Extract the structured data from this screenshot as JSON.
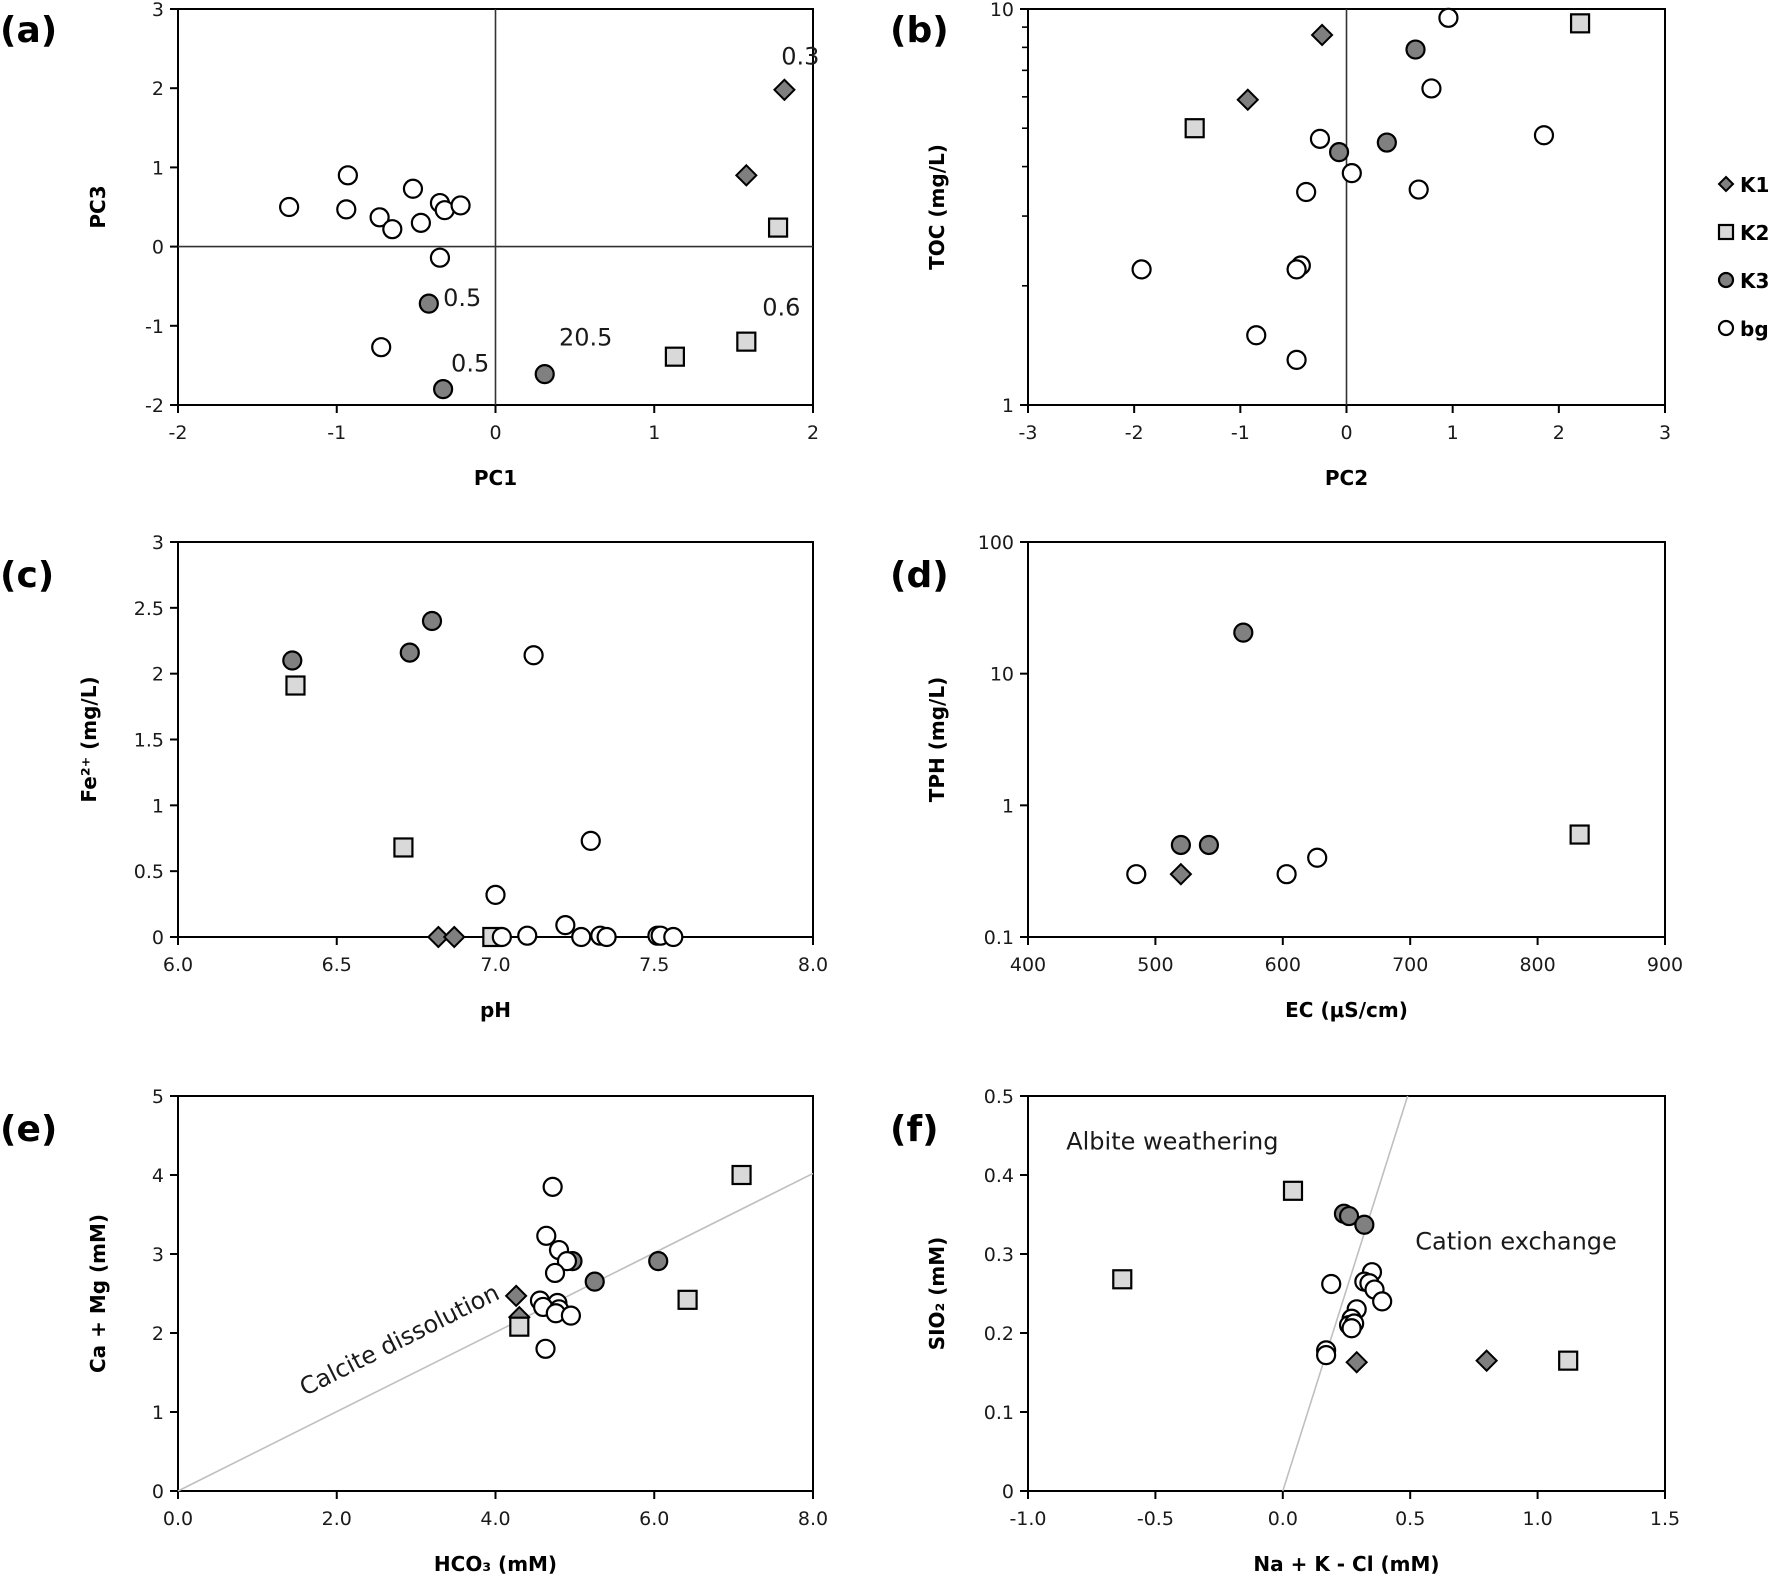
{
  "figure": {
    "legend": {
      "placement": "right-of-panel-b",
      "entries": [
        {
          "group": "K1",
          "label": "K1",
          "marker": "diamond",
          "fill": "#7f7f7f"
        },
        {
          "group": "K2",
          "label": "K2",
          "marker": "square",
          "fill": "#d9d9d9"
        },
        {
          "group": "K3",
          "label": "K3",
          "marker": "circle",
          "fill": "#808080"
        },
        {
          "group": "bg",
          "label": "bg",
          "marker": "circle",
          "fill": "#ffffff"
        }
      ]
    }
  },
  "chart_data": [
    {
      "id": "a",
      "panel_label": "(a)",
      "type": "scatter",
      "xlabel": "PC1",
      "ylabel": "PC3",
      "xlim": [
        -2,
        2
      ],
      "ylim": [
        -2,
        3
      ],
      "xscale": "linear",
      "yscale": "linear",
      "xticks": [
        -2,
        -1,
        0,
        1,
        2
      ],
      "xtick_labels": [
        "-2",
        "-1",
        "0",
        "1",
        "2"
      ],
      "yticks": [
        -2,
        -1,
        0,
        1,
        2,
        3
      ],
      "ytick_labels": [
        "-2",
        "-1",
        "0",
        "1",
        "2",
        "3"
      ],
      "zero_lines": {
        "x": true,
        "y": true
      },
      "grid": false,
      "series": [
        {
          "name": "K1",
          "points": [
            [
              1.82,
              1.98
            ],
            [
              1.58,
              0.9
            ]
          ]
        },
        {
          "name": "K2",
          "points": [
            [
              1.78,
              0.24
            ],
            [
              1.58,
              -1.2
            ],
            [
              1.13,
              -1.39
            ]
          ]
        },
        {
          "name": "K3",
          "points": [
            [
              -0.42,
              -0.72
            ],
            [
              -0.33,
              -1.8
            ],
            [
              0.31,
              -1.61
            ]
          ]
        },
        {
          "name": "bg",
          "points": [
            [
              -1.3,
              0.5
            ],
            [
              -0.93,
              0.9
            ],
            [
              -0.94,
              0.47
            ],
            [
              -0.73,
              0.37
            ],
            [
              -0.65,
              0.22
            ],
            [
              -0.52,
              0.73
            ],
            [
              -0.47,
              0.3
            ],
            [
              -0.35,
              0.55
            ],
            [
              -0.32,
              0.46
            ],
            [
              -0.22,
              0.52
            ],
            [
              -0.35,
              -0.14
            ],
            [
              -0.72,
              -1.27
            ]
          ]
        }
      ],
      "annotations": [
        {
          "text": "0.3",
          "x": 1.8,
          "y": 2.3
        },
        {
          "text": "0.5",
          "x": -0.33,
          "y": -0.75
        },
        {
          "text": "0.5",
          "x": -0.28,
          "y": -1.58
        },
        {
          "text": "20.5",
          "x": 0.4,
          "y": -1.25
        },
        {
          "text": "0.6",
          "x": 1.68,
          "y": -0.87
        }
      ]
    },
    {
      "id": "b",
      "panel_label": "(b)",
      "type": "scatter",
      "xlabel": "PC2",
      "ylabel": "TOC (mg/L)",
      "xlim": [
        -3,
        3
      ],
      "ylim": [
        1,
        10
      ],
      "xscale": "linear",
      "yscale": "log",
      "xticks": [
        -3,
        -2,
        -1,
        0,
        1,
        2,
        3
      ],
      "xtick_labels": [
        "-3",
        "-2",
        "-1",
        "0",
        "1",
        "2",
        "3"
      ],
      "yticks": [
        1,
        10
      ],
      "ytick_labels": [
        "1",
        "10"
      ],
      "zero_lines": {
        "x": true,
        "y": false
      },
      "grid": false,
      "series": [
        {
          "name": "K1",
          "points": [
            [
              -0.23,
              8.6
            ],
            [
              -0.93,
              5.9
            ]
          ]
        },
        {
          "name": "K2",
          "points": [
            [
              2.2,
              9.2
            ],
            [
              -1.43,
              5.0
            ]
          ]
        },
        {
          "name": "K3",
          "points": [
            [
              0.65,
              7.9
            ],
            [
              0.38,
              4.6
            ],
            [
              -0.07,
              4.35
            ]
          ]
        },
        {
          "name": "bg",
          "points": [
            [
              0.96,
              9.5
            ],
            [
              0.8,
              6.3
            ],
            [
              1.86,
              4.8
            ],
            [
              -0.25,
              4.7
            ],
            [
              0.05,
              3.85
            ],
            [
              0.68,
              3.5
            ],
            [
              -0.38,
              3.45
            ],
            [
              -1.93,
              2.2
            ],
            [
              -0.43,
              2.25
            ],
            [
              -0.47,
              2.2
            ],
            [
              -0.85,
              1.5
            ],
            [
              -0.47,
              1.3
            ]
          ]
        }
      ]
    },
    {
      "id": "c",
      "panel_label": "(c)",
      "type": "scatter",
      "xlabel": "pH",
      "ylabel": "Fe²⁺ (mg/L)",
      "xlim": [
        6.0,
        8.0
      ],
      "ylim": [
        0,
        3
      ],
      "xscale": "linear",
      "yscale": "linear",
      "xticks": [
        6.0,
        6.5,
        7.0,
        7.5,
        8.0
      ],
      "xtick_labels": [
        "6.0",
        "6.5",
        "7.0",
        "7.5",
        "8.0"
      ],
      "yticks": [
        0,
        0.5,
        1,
        1.5,
        2,
        2.5,
        3
      ],
      "ytick_labels": [
        "0",
        "0.5",
        "1",
        "1.5",
        "2",
        "2.5",
        "3"
      ],
      "zero_lines": {
        "x": false,
        "y": false
      },
      "grid": false,
      "series": [
        {
          "name": "K1",
          "points": [
            [
              6.82,
              0.0
            ],
            [
              6.87,
              0.0
            ]
          ]
        },
        {
          "name": "K2",
          "points": [
            [
              6.37,
              1.91
            ],
            [
              6.71,
              0.68
            ],
            [
              6.99,
              0.0
            ]
          ]
        },
        {
          "name": "K3",
          "points": [
            [
              6.36,
              2.1
            ],
            [
              6.73,
              2.16
            ],
            [
              6.8,
              2.4
            ]
          ]
        },
        {
          "name": "bg",
          "points": [
            [
              7.12,
              2.14
            ],
            [
              7.3,
              0.73
            ],
            [
              7.0,
              0.32
            ],
            [
              7.22,
              0.09
            ],
            [
              7.02,
              0.0
            ],
            [
              7.1,
              0.01
            ],
            [
              7.27,
              0.0
            ],
            [
              7.33,
              0.01
            ],
            [
              7.35,
              0.0
            ],
            [
              7.51,
              0.01
            ],
            [
              7.52,
              0.01
            ],
            [
              7.56,
              0.0
            ]
          ]
        }
      ]
    },
    {
      "id": "d",
      "panel_label": "(d)",
      "type": "scatter",
      "xlabel": "EC (μS/cm)",
      "ylabel": "TPH (mg/L)",
      "xlim": [
        400,
        900
      ],
      "ylim": [
        0.1,
        100
      ],
      "xscale": "linear",
      "yscale": "log",
      "xticks": [
        400,
        500,
        600,
        700,
        800,
        900
      ],
      "xtick_labels": [
        "400",
        "500",
        "600",
        "700",
        "800",
        "900"
      ],
      "yticks": [
        0.1,
        1,
        10,
        100
      ],
      "ytick_labels": [
        "0.1",
        "1",
        "10",
        "100"
      ],
      "zero_lines": {
        "x": false,
        "y": false
      },
      "grid": false,
      "series": [
        {
          "name": "K1",
          "points": [
            [
              520,
              0.3
            ]
          ]
        },
        {
          "name": "K2",
          "points": [
            [
              833,
              0.6
            ]
          ]
        },
        {
          "name": "K3",
          "points": [
            [
              569,
              20.5
            ],
            [
              520,
              0.5
            ],
            [
              542,
              0.5
            ]
          ]
        },
        {
          "name": "bg",
          "points": [
            [
              485,
              0.3
            ],
            [
              603,
              0.3
            ],
            [
              627,
              0.4
            ]
          ]
        }
      ]
    },
    {
      "id": "e",
      "panel_label": "(e)",
      "type": "scatter",
      "xlabel": "HCO₃ (mM)",
      "ylabel": "Ca + Mg  (mM)",
      "xlim": [
        0.0,
        8.0
      ],
      "ylim": [
        0,
        5
      ],
      "xscale": "linear",
      "yscale": "linear",
      "xticks": [
        0.0,
        2.0,
        4.0,
        6.0,
        8.0
      ],
      "xtick_labels": [
        "0.0",
        "2.0",
        "4.0",
        "6.0",
        "8.0"
      ],
      "yticks": [
        0,
        1,
        2,
        3,
        4,
        5
      ],
      "ytick_labels": [
        "0",
        "1",
        "2",
        "3",
        "4",
        "5"
      ],
      "zero_lines": {
        "x": false,
        "y": false
      },
      "grid": false,
      "reference_line": {
        "name": "Calcite dissolution",
        "from": [
          0,
          0
        ],
        "to": [
          8.0,
          4.02
        ],
        "color": "#bfbfbf"
      },
      "series": [
        {
          "name": "K1",
          "points": [
            [
              4.26,
              2.47
            ],
            [
              4.3,
              2.2
            ]
          ]
        },
        {
          "name": "K2",
          "points": [
            [
              7.1,
              4.0
            ],
            [
              6.42,
              2.42
            ],
            [
              4.3,
              2.08
            ]
          ]
        },
        {
          "name": "K3",
          "points": [
            [
              4.97,
              2.91
            ],
            [
              6.05,
              2.91
            ],
            [
              5.25,
              2.65
            ]
          ]
        },
        {
          "name": "bg",
          "points": [
            [
              4.72,
              3.85
            ],
            [
              4.64,
              3.23
            ],
            [
              4.8,
              3.05
            ],
            [
              4.9,
              2.91
            ],
            [
              4.75,
              2.76
            ],
            [
              4.56,
              2.41
            ],
            [
              4.78,
              2.38
            ],
            [
              4.6,
              2.33
            ],
            [
              4.8,
              2.3
            ],
            [
              4.76,
              2.25
            ],
            [
              4.95,
              2.22
            ],
            [
              4.63,
              1.8
            ]
          ]
        }
      ],
      "annotations": [
        {
          "text": "Calcite dissolution",
          "x": 1.6,
          "y": 1.2,
          "rotation_follows_line": true
        }
      ]
    },
    {
      "id": "f",
      "panel_label": "(f)",
      "type": "scatter",
      "xlabel": "Na + K - Cl (mM)",
      "ylabel": "SIO₂ (mM)",
      "xlim": [
        -1.0,
        1.5
      ],
      "ylim": [
        0,
        0.5
      ],
      "xscale": "linear",
      "yscale": "linear",
      "xticks": [
        -1.0,
        -0.5,
        0.0,
        0.5,
        1.0,
        1.5
      ],
      "xtick_labels": [
        "-1.0",
        "-0.5",
        "0.0",
        "0.5",
        "1.0",
        "1.5"
      ],
      "yticks": [
        0,
        0.1,
        0.2,
        0.3,
        0.4,
        0.5
      ],
      "ytick_labels": [
        "0",
        "0.1",
        "0.2",
        "0.3",
        "0.4",
        "0.5"
      ],
      "zero_lines": {
        "x": false,
        "y": false
      },
      "grid": false,
      "reference_line": {
        "name": "boundary",
        "from": [
          0.0,
          0.0
        ],
        "to": [
          0.49,
          0.5
        ],
        "color": "#bfbfbf"
      },
      "series": [
        {
          "name": "K1",
          "points": [
            [
              0.29,
              0.163
            ],
            [
              0.8,
              0.165
            ]
          ]
        },
        {
          "name": "K2",
          "points": [
            [
              0.04,
              0.38
            ],
            [
              -0.63,
              0.268
            ],
            [
              1.12,
              0.165
            ]
          ]
        },
        {
          "name": "K3",
          "points": [
            [
              0.24,
              0.351
            ],
            [
              0.26,
              0.348
            ],
            [
              0.32,
              0.337
            ]
          ]
        },
        {
          "name": "bg",
          "points": [
            [
              0.19,
              0.262
            ],
            [
              0.35,
              0.277
            ],
            [
              0.32,
              0.265
            ],
            [
              0.34,
              0.263
            ],
            [
              0.36,
              0.255
            ],
            [
              0.39,
              0.24
            ],
            [
              0.29,
              0.23
            ],
            [
              0.27,
              0.218
            ],
            [
              0.26,
              0.21
            ],
            [
              0.28,
              0.212
            ],
            [
              0.27,
              0.206
            ],
            [
              0.17,
              0.178
            ],
            [
              0.17,
              0.172
            ]
          ]
        }
      ],
      "annotations": [
        {
          "text": "Albite weathering",
          "x": -0.85,
          "y": 0.432
        },
        {
          "text": "Cation exchange",
          "x": 0.52,
          "y": 0.306
        }
      ]
    }
  ]
}
